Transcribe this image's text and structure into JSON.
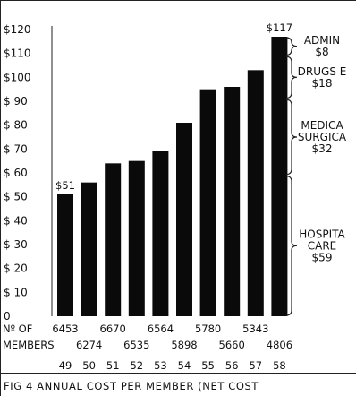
{
  "chart_data": {
    "type": "bar",
    "categories": [
      "49",
      "50",
      "51",
      "52",
      "53",
      "54",
      "55",
      "56",
      "57",
      "58"
    ],
    "values": [
      51,
      56,
      64,
      65,
      69,
      81,
      95,
      96,
      103,
      117
    ],
    "ylim": [
      0,
      120
    ],
    "y_ticks": [
      "0",
      "$ 10",
      "$ 20",
      "$ 30",
      "$ 40",
      "$ 50",
      "$ 60",
      "$ 70",
      "$ 80",
      "$ 90",
      "$100",
      "$110",
      "$120"
    ],
    "data_labels": [
      {
        "category": "49",
        "text": "$51"
      },
      {
        "category": "58",
        "text": "$117"
      }
    ],
    "members_label": [
      "Nº OF",
      "MEMBERS"
    ],
    "members_row1": [
      "6453",
      "6670",
      "6564",
      "5780",
      "5343"
    ],
    "members_row2": [
      "6274",
      "6535",
      "5898",
      "5660",
      "4806"
    ],
    "members": [
      6453,
      6274,
      6670,
      6535,
      6564,
      5898,
      5780,
      5660,
      5343,
      4806
    ],
    "cost_breakdown": [
      {
        "lines": [
          "ADMIN",
          "$8"
        ],
        "value": 8
      },
      {
        "lines": [
          "DRUGS E",
          "$18"
        ],
        "value": 18
      },
      {
        "lines": [
          "MEDICA",
          "SURGICA",
          "$32"
        ],
        "value": 32
      },
      {
        "lines": [
          "HOSPITA",
          "CARE",
          "$59"
        ],
        "value": 59
      }
    ],
    "caption": "FIG 4 ANNUAL COST PER MEMBER (NET COST",
    "grid": false,
    "bar_color": "#0a0a0a"
  }
}
